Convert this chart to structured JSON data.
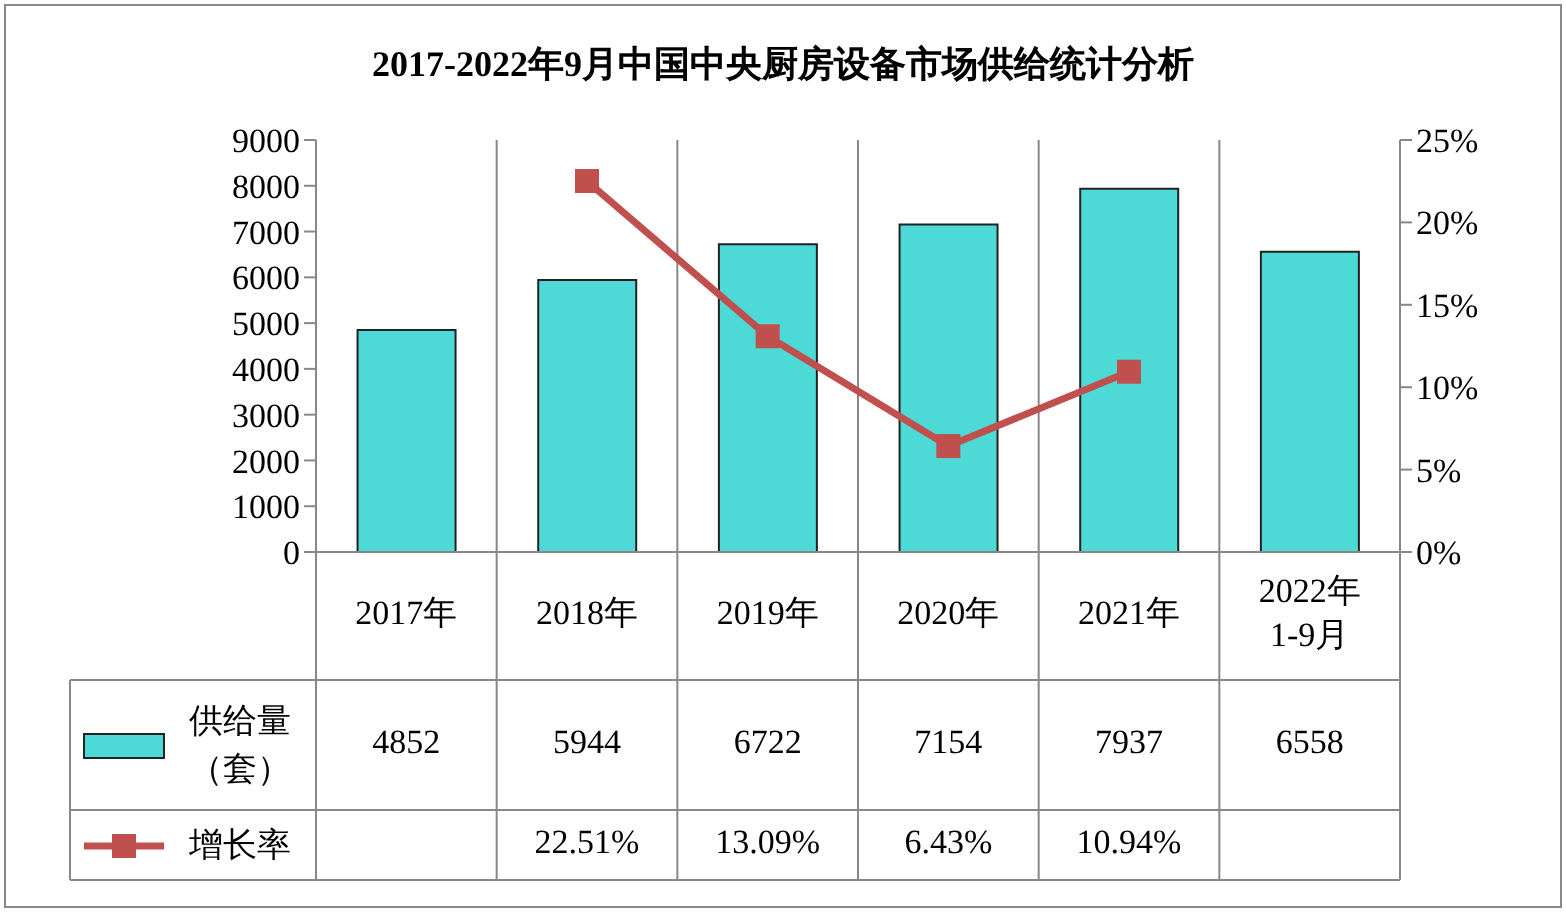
{
  "chart_data": {
    "type": "bar",
    "title": "2017-2022年9月中国中央厨房设备市场供给统计分析",
    "categories": [
      "2017年",
      "2018年",
      "2019年",
      "2020年",
      "2021年",
      "2022年 1-9月"
    ],
    "series": [
      {
        "name": "供给量（套）",
        "color": "#4dd9d5",
        "values": [
          4852,
          5944,
          6722,
          7154,
          7937,
          6558
        ]
      },
      {
        "name": "增长率",
        "type": "line",
        "axis": "y2",
        "color": "#c0504d",
        "values": [
          null,
          22.51,
          13.09,
          6.43,
          10.94,
          null
        ],
        "value_labels": [
          null,
          "22.51%",
          "13.09%",
          "6.43%",
          "10.94%",
          null
        ]
      }
    ],
    "ylim": [
      0,
      9000
    ],
    "yticks": [
      0,
      1000,
      2000,
      3000,
      4000,
      5000,
      6000,
      7000,
      8000,
      9000
    ],
    "y2lim": [
      0,
      25
    ],
    "y2ticks": [
      {
        "value": 0,
        "label": "0%"
      },
      {
        "value": 5,
        "label": "5%"
      },
      {
        "value": 10,
        "label": "10%"
      },
      {
        "value": 15,
        "label": "15%"
      },
      {
        "value": 20,
        "label": "20%"
      },
      {
        "value": 25,
        "label": "25%"
      }
    ],
    "data_labels": true,
    "grid": "x",
    "legend": "bottom",
    "marker": "square",
    "line_style": "solid"
  }
}
